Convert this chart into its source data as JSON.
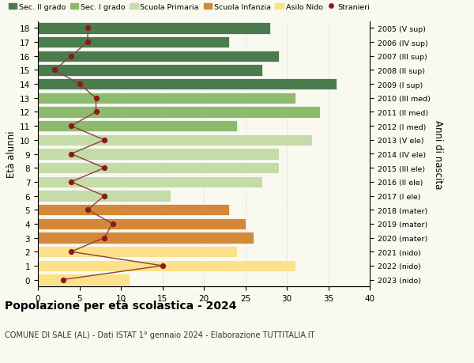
{
  "ages": [
    0,
    1,
    2,
    3,
    4,
    5,
    6,
    7,
    8,
    9,
    10,
    11,
    12,
    13,
    14,
    15,
    16,
    17,
    18
  ],
  "years": [
    "2023 (nido)",
    "2022 (nido)",
    "2021 (nido)",
    "2020 (mater)",
    "2019 (mater)",
    "2018 (mater)",
    "2017 (I ele)",
    "2016 (II ele)",
    "2015 (III ele)",
    "2014 (IV ele)",
    "2013 (V ele)",
    "2012 (I med)",
    "2011 (II med)",
    "2010 (III med)",
    "2009 (I sup)",
    "2008 (II sup)",
    "2007 (III sup)",
    "2006 (IV sup)",
    "2005 (V sup)"
  ],
  "bar_values": [
    11,
    31,
    24,
    26,
    25,
    23,
    16,
    27,
    29,
    29,
    33,
    24,
    34,
    31,
    36,
    27,
    29,
    23,
    28
  ],
  "stranieri": [
    3,
    15,
    4,
    8,
    9,
    6,
    8,
    4,
    8,
    4,
    8,
    4,
    7,
    7,
    5,
    2,
    4,
    6,
    6
  ],
  "bar_colors": [
    "#fce08a",
    "#fce08a",
    "#fce08a",
    "#d4883a",
    "#d4883a",
    "#d4883a",
    "#c5dba8",
    "#c5dba8",
    "#c5dba8",
    "#c5dba8",
    "#c5dba8",
    "#8dbb6e",
    "#8dbb6e",
    "#8dbb6e",
    "#4a7c4e",
    "#4a7c4e",
    "#4a7c4e",
    "#4a7c4e",
    "#4a7c4e"
  ],
  "legend_labels": [
    "Sec. II grado",
    "Sec. I grado",
    "Scuola Primaria",
    "Scuola Infanzia",
    "Asilo Nido",
    "Stranieri"
  ],
  "legend_colors": [
    "#4a7c4e",
    "#8dbb6e",
    "#c5dba8",
    "#d4883a",
    "#fce08a",
    "#8b1a1a"
  ],
  "stranieri_color": "#8b1a1a",
  "stranieri_line_color": "#8b4040",
  "title": "Popolazione per età scolastica - 2024",
  "subtitle": "COMUNE DI SALE (AL) - Dati ISTAT 1° gennaio 2024 - Elaborazione TUTTITALIA.IT",
  "ylabel_left": "Età alunni",
  "ylabel_right": "Anni di nascita",
  "xlim": [
    0,
    40
  ],
  "xticks": [
    0,
    5,
    10,
    15,
    20,
    25,
    30,
    35,
    40
  ],
  "bg_color": "#f9f9f0"
}
